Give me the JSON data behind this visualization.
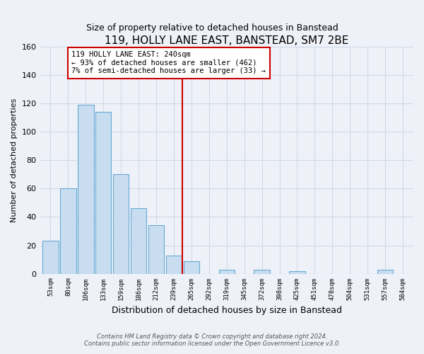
{
  "title": "119, HOLLY LANE EAST, BANSTEAD, SM7 2BE",
  "subtitle": "Size of property relative to detached houses in Banstead",
  "xlabel": "Distribution of detached houses by size in Banstead",
  "ylabel": "Number of detached properties",
  "bar_labels": [
    "53sqm",
    "80sqm",
    "106sqm",
    "133sqm",
    "159sqm",
    "186sqm",
    "212sqm",
    "239sqm",
    "265sqm",
    "292sqm",
    "319sqm",
    "345sqm",
    "372sqm",
    "398sqm",
    "425sqm",
    "451sqm",
    "478sqm",
    "504sqm",
    "531sqm",
    "557sqm",
    "584sqm"
  ],
  "bar_values": [
    23,
    60,
    119,
    114,
    70,
    46,
    34,
    13,
    9,
    0,
    3,
    0,
    3,
    0,
    2,
    0,
    0,
    0,
    0,
    3,
    0
  ],
  "bar_color": "#c8ddf0",
  "bar_edge_color": "#6aaad4",
  "vline_color": "#cc0000",
  "annotation_text": "119 HOLLY LANE EAST: 240sqm\n← 93% of detached houses are smaller (462)\n7% of semi-detached houses are larger (33) →",
  "annotation_box_color": "#ffffff",
  "annotation_box_edge_color": "#cc0000",
  "ylim": [
    0,
    160
  ],
  "yticks": [
    0,
    20,
    40,
    60,
    80,
    100,
    120,
    140,
    160
  ],
  "footnote": "Contains HM Land Registry data © Crown copyright and database right 2024.\nContains public sector information licensed under the Open Government Licence v3.0.",
  "bg_color": "#eef2f8",
  "grid_color": "#d0d8e8",
  "title_fontsize": 11,
  "subtitle_fontsize": 9,
  "ylabel_fontsize": 8,
  "xlabel_fontsize": 9
}
